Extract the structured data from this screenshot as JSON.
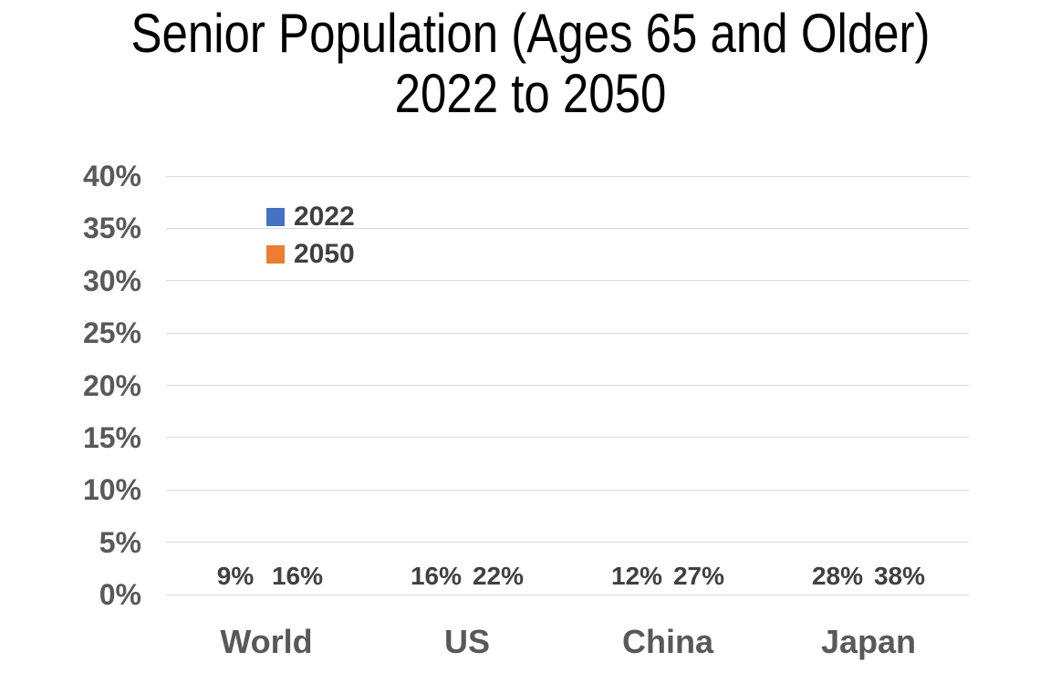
{
  "title": {
    "line1": "Senior Population (Ages 65 and Older)",
    "line2": "2022 to 2050"
  },
  "chart_data": {
    "type": "bar",
    "categories": [
      "World",
      "US",
      "China",
      "Japan"
    ],
    "series": [
      {
        "name": "2022",
        "color": "#4472C4",
        "values": [
          9,
          16,
          12,
          28
        ]
      },
      {
        "name": "2050",
        "color": "#ED7D31",
        "values": [
          16,
          22,
          27,
          38
        ]
      }
    ],
    "value_suffix": "%",
    "data_labels": {
      "2022": [
        "9%",
        "16%",
        "12%",
        "28%"
      ],
      "2050": [
        "16%",
        "22%",
        "27%",
        "38%"
      ]
    },
    "ylim": [
      0,
      40
    ],
    "ytick_step": 5,
    "ytick_labels": [
      "0%",
      "5%",
      "10%",
      "15%",
      "20%",
      "25%",
      "30%",
      "35%",
      "40%"
    ],
    "grid": true,
    "legend_position": "upper-left-inside",
    "colors": {
      "series_2022": "#4472C4",
      "series_2050": "#ED7D31",
      "gridline": "#d9d9d9",
      "axis_label": "#595959",
      "data_label": "#404040",
      "title": "#000000"
    }
  }
}
